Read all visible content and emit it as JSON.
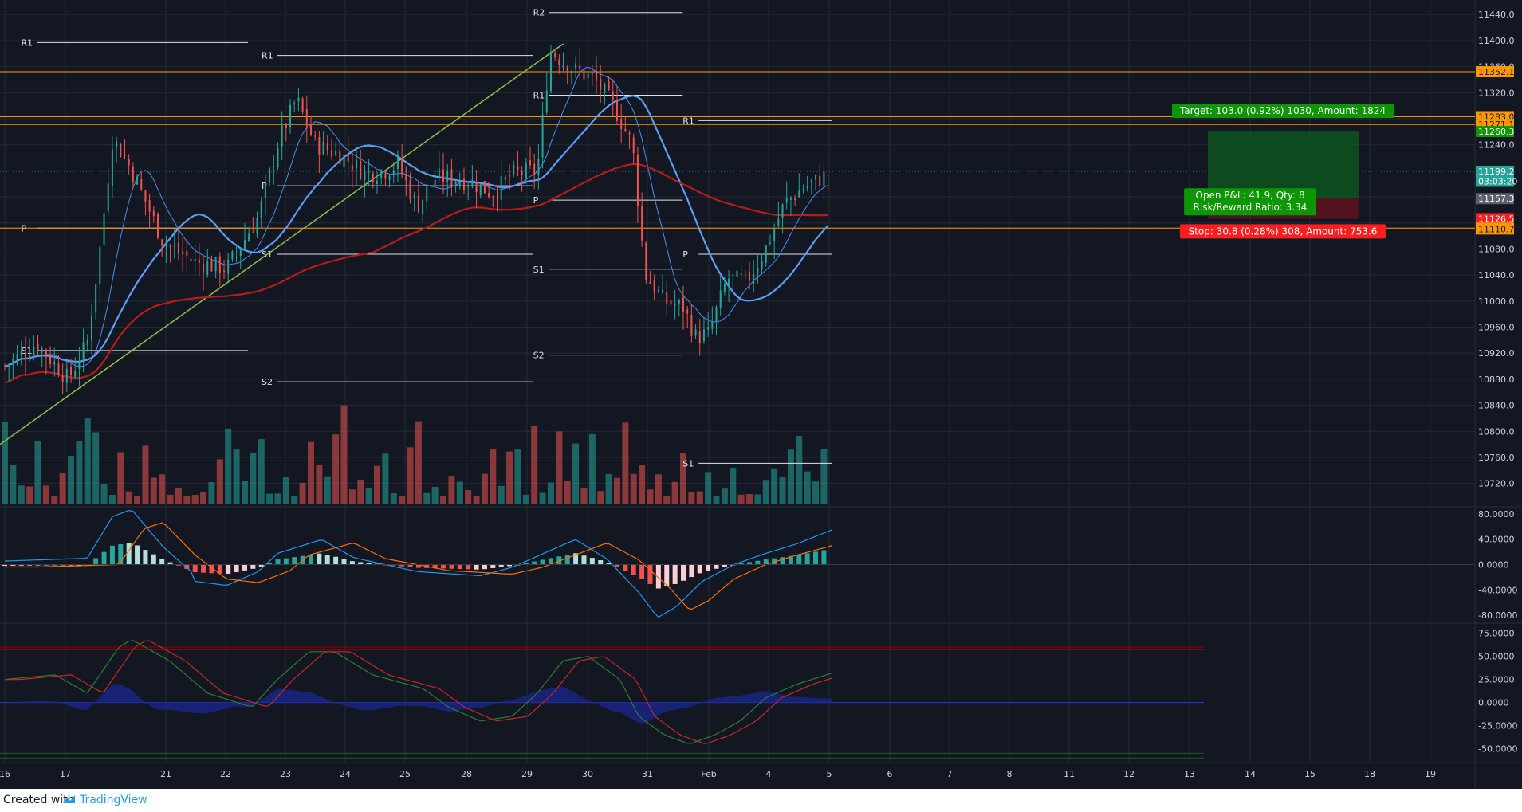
{
  "chart_data": {
    "type": "candlestick",
    "symbol_note": "",
    "x_ticks": [
      "16",
      "17",
      "21",
      "22",
      "23",
      "24",
      "25",
      "28",
      "29",
      "30",
      "31",
      "Feb",
      "4",
      "5",
      "6",
      "7",
      "8",
      "11",
      "12",
      "13",
      "14",
      "15",
      "18",
      "19"
    ],
    "price_ticks": [
      "11440.0",
      "11400.0",
      "11360.0",
      "11320.0",
      "11280.0",
      "11240.0",
      "11200.0",
      "11160.0",
      "11120.0",
      "11080.0",
      "11040.0",
      "11000.0",
      "10960.0",
      "10920.0",
      "10880.0",
      "10840.0",
      "10800.0",
      "10760.0",
      "10720.0"
    ],
    "price_range": [
      10700,
      11450
    ],
    "macd_ticks": [
      "80.0000",
      "40.0000",
      "0.0000",
      "-40.0000",
      "-80.0000"
    ],
    "macd_range": [
      -90,
      90
    ],
    "osc_ticks": [
      "75.0000",
      "50.0000",
      "25.0000",
      "0.0000",
      "-25.0000",
      "-50.0000"
    ],
    "osc_range": [
      -65,
      85
    ],
    "price_labels": [
      {
        "text": "11352.1",
        "value": 11352.1,
        "color": "#ff9800",
        "fg": "#131722"
      },
      {
        "text": "11283.0",
        "value": 11283.0,
        "color": "#ff9800",
        "fg": "#131722"
      },
      {
        "text": "11271.1",
        "value": 11271.1,
        "color": "#ff9800",
        "fg": "#131722"
      },
      {
        "text": "11260.3",
        "value": 11260.3,
        "color": "#0c9600",
        "fg": "#ffffff"
      },
      {
        "text": "11199.2",
        "value": 11199.2,
        "color": "#26a69a",
        "fg": "#ffffff"
      },
      {
        "text": "03:03:20",
        "value": 11184.0,
        "color": "#26a69a",
        "fg": "#ffffff"
      },
      {
        "text": "11157.3",
        "value": 11157.3,
        "color": "#5d606b",
        "fg": "#ffffff"
      },
      {
        "text": "11126.5",
        "value": 11126.5,
        "color": "#ff1e1e",
        "fg": "#ffffff"
      },
      {
        "text": "11112.0",
        "value": 11112.0,
        "color": "#ff9800",
        "fg": "#131722"
      },
      {
        "text": "11110.7",
        "value": 11110.7,
        "color": "#ff9800",
        "fg": "#131722"
      }
    ],
    "horizontal_lines": [
      {
        "value": 11352.1,
        "color": "#ff9800"
      },
      {
        "value": 11283.0,
        "color": "#ff9800"
      },
      {
        "value": 11271.1,
        "color": "#ff9800"
      },
      {
        "value": 11199.2,
        "color": "#26a69a",
        "dotted": true
      },
      {
        "value": 11112.0,
        "color": "#ff9800"
      },
      {
        "value": 11110.7,
        "color": "#ff9800",
        "dotted": true
      }
    ],
    "pivots": [
      {
        "label": "R1",
        "value": 11397,
        "x0": 0.12,
        "x1": 1.5
      },
      {
        "label": "P",
        "value": 11112,
        "x0": 0.12,
        "x1": 1.5
      },
      {
        "label": "S1",
        "value": 10924,
        "x0": 0.12,
        "x1": 1.5
      },
      {
        "label": "R1",
        "value": 11377,
        "x0": 1.6,
        "x1": 3.6
      },
      {
        "label": "P",
        "value": 11177,
        "x0": 1.6,
        "x1": 3.6
      },
      {
        "label": "S1",
        "value": 11072,
        "x0": 1.6,
        "x1": 3.6
      },
      {
        "label": "S2",
        "value": 10876,
        "x0": 1.6,
        "x1": 3.6
      },
      {
        "label": "R2",
        "value": 11443,
        "x0": 3.6,
        "x1": 4.7
      },
      {
        "label": "R1",
        "value": 11316,
        "x0": 3.6,
        "x1": 4.7
      },
      {
        "label": "P",
        "value": 11155,
        "x0": 3.6,
        "x1": 4.7
      },
      {
        "label": "S1",
        "value": 11049,
        "x0": 3.6,
        "x1": 4.7
      },
      {
        "label": "S2",
        "value": 10917,
        "x0": 3.6,
        "x1": 4.7
      },
      {
        "label": "R1",
        "value": 11277,
        "x0": 4.7,
        "x1": 5.8
      },
      {
        "label": "P",
        "value": 11072,
        "x0": 4.7,
        "x1": 5.8
      },
      {
        "label": "S1",
        "value": 10751,
        "x0": 4.7,
        "x1": 5.8
      }
    ],
    "position": {
      "target_text": "Target: 103.0 (0.92%) 1030, Amount: 1824",
      "pnl_text": "Open P&L: 41.9, Qty: 8",
      "rr_text": "Risk/Reward Ratio: 3.34",
      "stop_text": "Stop: 30.8 (0.28%) 308, Amount: 753.6",
      "entry": 11157.3,
      "target": 11260.3,
      "stop": 11126.5
    },
    "ohlc_note": "",
    "candles": [],
    "volume": [],
    "macd_hist": []
  },
  "footer": {
    "created_with": "Created with",
    "brand": "TradingView"
  }
}
